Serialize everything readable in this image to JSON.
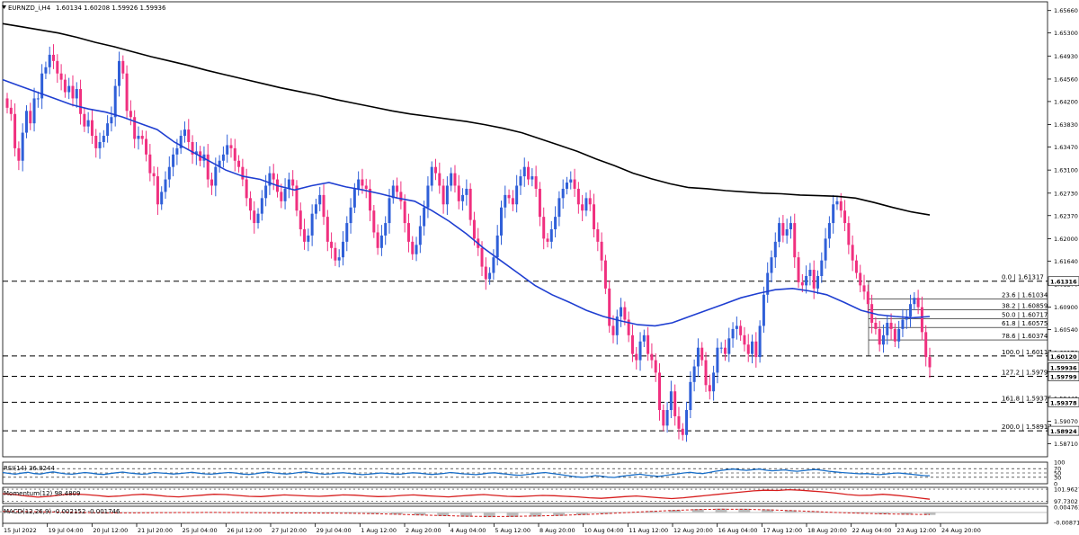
{
  "header": {
    "symbol": "EURNZD_i,H4",
    "ohlc": "1.60134 1.60208 1.59926 1.59936"
  },
  "colors": {
    "bull": "#2f5fd8",
    "bear": "#f0307f",
    "ma_fast": "#1f3fd1",
    "ma_slow": "#000000",
    "rsi": "#1a6fc8",
    "momentum": "#d71e1e",
    "macd": "#d71e1e"
  },
  "chart_data": [
    {
      "type": "candlestick",
      "title": "EURNZD_i,H4",
      "ylim": [
        1.585,
        1.658
      ],
      "y_ticks": [
        "1.65660",
        "1.65300",
        "1.64930",
        "1.64560",
        "1.64200",
        "1.63830",
        "1.63470",
        "1.63100",
        "1.62730",
        "1.62370",
        "1.62000",
        "1.61640",
        "1.61270",
        "1.60900",
        "1.60540",
        "1.60170",
        "1.59800",
        "1.59440",
        "1.59070",
        "1.58710"
      ],
      "x_ticks": [
        "15 Jul 2022",
        "19 Jul 04:00",
        "20 Jul 12:00",
        "21 Jul 20:00",
        "25 Jul 04:00",
        "26 Jul 12:00",
        "27 Jul 20:00",
        "29 Jul 04:00",
        "1 Aug 12:00",
        "2 Aug 20:00",
        "4 Aug 04:00",
        "5 Aug 12:00",
        "8 Aug 20:00",
        "10 Aug 04:00",
        "11 Aug 12:00",
        "12 Aug 20:00",
        "16 Aug 04:00",
        "17 Aug 12:00",
        "18 Aug 20:00",
        "22 Aug 04:00",
        "23 Aug 12:00",
        "24 Aug 20:00"
      ],
      "closes": [
        1.641,
        1.64,
        1.6345,
        1.6325,
        1.637,
        1.6405,
        1.6385,
        1.6425,
        1.6425,
        1.6465,
        1.6475,
        1.6495,
        1.6485,
        1.6465,
        1.6455,
        1.6435,
        1.6445,
        1.6425,
        1.644,
        1.64,
        1.638,
        1.639,
        1.6365,
        1.6345,
        1.6355,
        1.6365,
        1.6385,
        1.6395,
        1.6445,
        1.6485,
        1.6465,
        1.6405,
        1.6395,
        1.636,
        1.6365,
        1.636,
        1.6335,
        1.6305,
        1.63,
        1.6255,
        1.6275,
        1.6295,
        1.6315,
        1.6335,
        1.6345,
        1.6365,
        1.6375,
        1.6355,
        1.6335,
        1.634,
        1.6325,
        1.6335,
        1.6295,
        1.6285,
        1.6315,
        1.6325,
        1.6335,
        1.635,
        1.6345,
        1.6325,
        1.6315,
        1.6295,
        1.6265,
        1.6245,
        1.6225,
        1.624,
        1.6265,
        1.6285,
        1.6305,
        1.6295,
        1.6275,
        1.626,
        1.628,
        1.6295,
        1.6285,
        1.6245,
        1.6215,
        1.6195,
        1.6205,
        1.624,
        1.6255,
        1.627,
        1.6235,
        1.6195,
        1.6185,
        1.6165,
        1.617,
        1.6195,
        1.6225,
        1.625,
        1.628,
        1.6295,
        1.6285,
        1.628,
        1.6245,
        1.621,
        1.6185,
        1.6205,
        1.6225,
        1.6265,
        1.6285,
        1.6275,
        1.626,
        1.6225,
        1.6195,
        1.6175,
        1.619,
        1.622,
        1.625,
        1.6285,
        1.6315,
        1.6305,
        1.6285,
        1.6255,
        1.6285,
        1.6305,
        1.6285,
        1.626,
        1.627,
        1.628,
        1.623,
        1.62,
        1.6185,
        1.6155,
        1.6135,
        1.6145,
        1.617,
        1.6205,
        1.625,
        1.627,
        1.6265,
        1.6255,
        1.6285,
        1.63,
        1.6315,
        1.6295,
        1.63,
        1.628,
        1.6235,
        1.62,
        1.6195,
        1.6215,
        1.6235,
        1.6265,
        1.628,
        1.629,
        1.6295,
        1.628,
        1.6255,
        1.6245,
        1.6265,
        1.6255,
        1.6215,
        1.6195,
        1.6165,
        1.612,
        1.606,
        1.6045,
        1.6075,
        1.609,
        1.607,
        1.6045,
        1.6015,
        1.6005,
        1.6035,
        1.6045,
        1.6015,
        1.6005,
        1.5985,
        1.5925,
        1.59,
        1.5925,
        1.5955,
        1.5915,
        1.5895,
        1.5885,
        1.5925,
        1.597,
        1.5995,
        1.6025,
        1.6005,
        1.5965,
        1.5955,
        1.5985,
        1.6025,
        1.6025,
        1.6015,
        1.604,
        1.6055,
        1.606,
        1.6045,
        1.603,
        1.6015,
        1.6035,
        1.601,
        1.606,
        1.611,
        1.6145,
        1.617,
        1.6195,
        1.6225,
        1.6205,
        1.6215,
        1.6225,
        1.617,
        1.613,
        1.6125,
        1.614,
        1.615,
        1.612,
        1.614,
        1.6165,
        1.62,
        1.6225,
        1.6255,
        1.626,
        1.6245,
        1.6225,
        1.619,
        1.6165,
        1.6145,
        1.6125,
        1.6115,
        1.6095,
        1.6065,
        1.6055,
        1.603,
        1.6045,
        1.6065,
        1.6055,
        1.6035,
        1.6055,
        1.607,
        1.6075,
        1.6095,
        1.6105,
        1.609,
        1.605,
        1.601,
        1.59936
      ],
      "sma_fast": [
        1.6455,
        1.6445,
        1.6435,
        1.6425,
        1.6415,
        1.6408,
        1.6403,
        1.6395,
        1.6385,
        1.6375,
        1.6355,
        1.634,
        1.6325,
        1.631,
        1.63,
        1.6295,
        1.6285,
        1.6278,
        1.6285,
        1.629,
        1.6283,
        1.6278,
        1.6272,
        1.6265,
        1.626,
        1.6245,
        1.6228,
        1.6208,
        1.6185,
        1.6165,
        1.6145,
        1.6125,
        1.611,
        1.6098,
        1.6085,
        1.6075,
        1.6068,
        1.6062,
        1.606,
        1.6065,
        1.6075,
        1.6085,
        1.6095,
        1.6105,
        1.6112,
        1.6118,
        1.612,
        1.6116,
        1.611,
        1.6098,
        1.6085,
        1.6078,
        1.6075,
        1.6073,
        1.6075
      ],
      "sma_slow": [
        1.6545,
        1.654,
        1.6535,
        1.653,
        1.6523,
        1.6515,
        1.6508,
        1.65,
        1.6492,
        1.6485,
        1.6478,
        1.647,
        1.6463,
        1.6456,
        1.6449,
        1.6442,
        1.6436,
        1.643,
        1.6423,
        1.6417,
        1.6411,
        1.6405,
        1.64,
        1.6396,
        1.6392,
        1.6388,
        1.6383,
        1.6377,
        1.637,
        1.636,
        1.635,
        1.634,
        1.6328,
        1.6317,
        1.6305,
        1.6296,
        1.6288,
        1.6282,
        1.628,
        1.6277,
        1.6275,
        1.6273,
        1.6272,
        1.627,
        1.6269,
        1.6268,
        1.6265,
        1.6258,
        1.625,
        1.6243,
        1.6238
      ],
      "fibonacci": [
        {
          "level": "0.0",
          "price": "1.61317",
          "axis_label": "1.61316"
        },
        {
          "level": "23.6",
          "price": "1.61034",
          "axis_label": ""
        },
        {
          "level": "38.2",
          "price": "1.60859",
          "axis_label": ""
        },
        {
          "level": "50.0",
          "price": "1.60717",
          "axis_label": ""
        },
        {
          "level": "61.8",
          "price": "1.60575",
          "axis_label": ""
        },
        {
          "level": "78.6",
          "price": "1.60374",
          "axis_label": ""
        },
        {
          "level": "100.0",
          "price": "1.60117",
          "axis_label": "1.60120"
        },
        {
          "level": "127.2",
          "price": "1.59791",
          "axis_label": "1.59799"
        },
        {
          "level": "161.8",
          "price": "1.59375",
          "axis_label": "1.59378"
        },
        {
          "level": "200.0",
          "price": "1.58917",
          "axis_label": "1.58924"
        }
      ],
      "current_price": "1.59936",
      "grid": false
    },
    {
      "type": "line",
      "title": "RSI(14) 36.8244",
      "ylim": [
        0,
        100
      ],
      "levels": [
        "70",
        "50",
        "30"
      ],
      "y_ticks": [
        "100",
        "70",
        "50",
        "30",
        "0"
      ],
      "values": [
        52,
        48,
        44,
        49,
        53,
        47,
        45,
        51,
        55,
        50,
        46,
        44,
        48,
        52,
        49,
        45,
        43,
        47,
        51,
        54,
        50,
        47,
        44,
        46,
        52,
        50,
        48,
        45,
        47,
        50,
        53,
        49,
        46,
        44,
        47,
        50,
        52,
        49,
        45,
        43,
        46,
        51,
        54,
        50,
        47,
        45,
        48,
        52,
        55,
        51,
        47,
        44,
        46,
        49,
        51,
        48,
        45,
        42,
        44,
        47,
        50,
        48,
        45,
        44,
        48,
        51,
        49,
        46,
        43,
        45,
        48,
        52,
        49,
        46,
        44,
        42,
        45,
        49,
        51,
        47,
        44,
        41,
        39,
        42,
        46,
        49,
        52,
        48,
        44,
        40,
        36,
        32,
        30,
        33,
        38,
        35,
        31,
        29,
        34,
        38,
        41,
        44,
        40,
        37,
        34,
        38,
        42,
        46,
        50,
        53,
        49,
        47,
        52,
        58,
        62,
        66,
        68,
        64,
        62,
        65,
        68,
        63,
        60,
        62,
        64,
        60,
        58,
        61,
        64,
        66,
        62,
        58,
        55,
        52,
        50,
        48,
        46,
        47,
        44,
        42,
        45,
        48,
        50,
        47,
        44,
        41,
        38,
        37
      ]
    },
    {
      "type": "line",
      "title": "Momentum(12) 98.4809",
      "y_ticks": [
        "101.9627",
        "97.7302"
      ],
      "values": [
        100.4,
        100.1,
        99.6,
        99.2,
        99.5,
        100.0,
        100.3,
        100.1,
        99.8,
        99.4,
        99.6,
        100.0,
        100.2,
        99.9,
        99.5,
        99.3,
        99.6,
        99.9,
        100.2,
        100.1,
        99.8,
        99.5,
        99.4,
        99.7,
        100.0,
        99.8,
        99.6,
        99.5,
        99.7,
        100.0,
        99.9,
        99.6,
        99.4,
        99.5,
        99.8,
        100.0,
        99.7,
        99.5,
        99.3,
        99.6,
        99.9,
        100.1,
        99.8,
        99.5,
        99.4,
        99.6,
        99.8,
        99.7,
        99.5,
        99.3,
        99.0,
        98.8,
        99.1,
        99.4,
        99.6,
        99.3,
        99.0,
        98.7,
        99.0,
        99.4,
        99.8,
        100.2,
        100.6,
        101.0,
        101.4,
        101.6,
        101.5,
        101.8,
        101.6,
        101.3,
        101.0,
        100.6,
        100.1,
        99.8,
        99.9,
        100.2,
        99.9,
        99.5,
        99.0,
        98.5
      ]
    },
    {
      "type": "line",
      "title": "MACD(12,26,9) -0.002152 -0.001746",
      "y_ticks": [
        "0.004761",
        "-0.008711"
      ],
      "values": [
        0.0012,
        0.001,
        0.0006,
        0.0002,
        -0.0002,
        -0.0004,
        -0.0003,
        -0.0001,
        0.0,
        0.0001,
        0.0,
        -0.0002,
        -0.0004,
        -0.0005,
        -0.0006,
        -0.0008,
        -0.0012,
        -0.0018,
        -0.0025,
        -0.0032,
        -0.0038,
        -0.0041,
        -0.004,
        -0.0036,
        -0.003,
        -0.0022,
        -0.0012,
        0.0,
        0.0012,
        0.0022,
        0.003,
        0.0034,
        0.0033,
        0.0028,
        0.002,
        0.001,
        0.0,
        -0.0008,
        -0.0014,
        -0.0018,
        -0.00215
      ]
    }
  ]
}
